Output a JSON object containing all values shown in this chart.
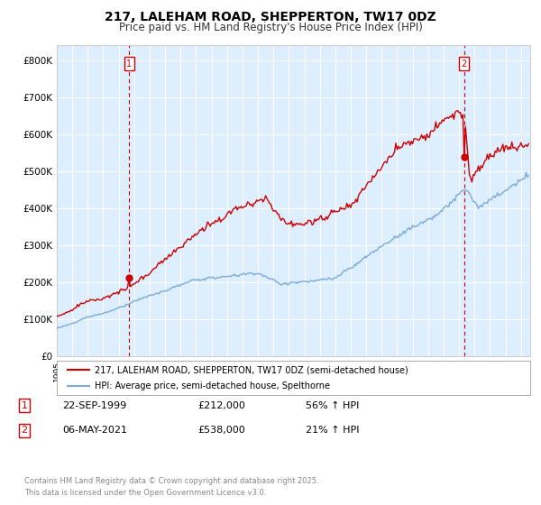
{
  "title": "217, LALEHAM ROAD, SHEPPERTON, TW17 0DZ",
  "subtitle": "Price paid vs. HM Land Registry's House Price Index (HPI)",
  "legend_line1": "217, LALEHAM ROAD, SHEPPERTON, TW17 0DZ (semi-detached house)",
  "legend_line2": "HPI: Average price, semi-detached house, Spelthorne",
  "annotation1_label": "1",
  "annotation1_date": "22-SEP-1999",
  "annotation1_price": "£212,000",
  "annotation1_hpi": "56% ↑ HPI",
  "annotation2_label": "2",
  "annotation2_date": "06-MAY-2021",
  "annotation2_price": "£538,000",
  "annotation2_hpi": "21% ↑ HPI",
  "footer": "Contains HM Land Registry data © Crown copyright and database right 2025.\nThis data is licensed under the Open Government Licence v3.0.",
  "red_color": "#cc0000",
  "blue_color": "#7aabdb",
  "bg_chart": "#ddeeff",
  "background_color": "#ffffff",
  "grid_color": "#ffffff",
  "ylim": [
    0,
    840000
  ],
  "yticks": [
    0,
    100000,
    200000,
    300000,
    400000,
    500000,
    600000,
    700000,
    800000
  ],
  "ytick_labels": [
    "£0",
    "£100K",
    "£200K",
    "£300K",
    "£400K",
    "£500K",
    "£600K",
    "£700K",
    "£800K"
  ]
}
